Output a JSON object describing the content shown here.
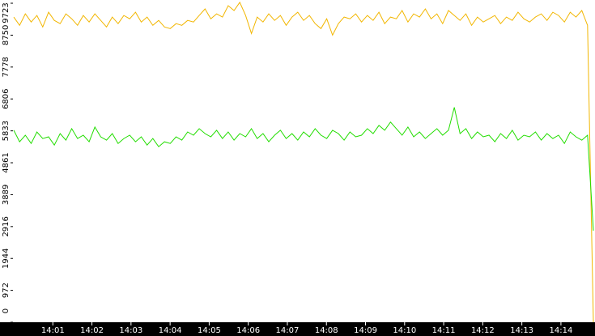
{
  "chart_data": {
    "type": "line",
    "xlim": [
      0,
      14.83
    ],
    "xticks": [
      {
        "value": 1,
        "label": "14:01"
      },
      {
        "value": 2,
        "label": "14:02"
      },
      {
        "value": 3,
        "label": "14:03"
      },
      {
        "value": 4,
        "label": "14:04"
      },
      {
        "value": 5,
        "label": "14:05"
      },
      {
        "value": 6,
        "label": "14:06"
      },
      {
        "value": 7,
        "label": "14:07"
      },
      {
        "value": 8,
        "label": "14:08"
      },
      {
        "value": 9,
        "label": "14:09"
      },
      {
        "value": 10,
        "label": "14:10"
      },
      {
        "value": 11,
        "label": "14:11"
      },
      {
        "value": 12,
        "label": "14:12"
      },
      {
        "value": 13,
        "label": "14:13"
      },
      {
        "value": 14,
        "label": "14:14"
      }
    ],
    "ylim": [
      0,
      9723
    ],
    "yticks": [
      0,
      972,
      1944,
      2916,
      3889,
      4861,
      5833,
      6806,
      7778,
      8750,
      9723
    ],
    "series": [
      {
        "color": "#f2b600",
        "values": [
          9300,
          9050,
          9400,
          9150,
          9350,
          9000,
          9450,
          9200,
          9100,
          9400,
          9250,
          9050,
          9350,
          9150,
          9400,
          9200,
          9000,
          9300,
          9100,
          9350,
          9250,
          9450,
          9150,
          9300,
          9050,
          9200,
          9000,
          8950,
          9100,
          9050,
          9200,
          9150,
          9350,
          9550,
          9250,
          9400,
          9300,
          9650,
          9500,
          9750,
          9350,
          8800,
          9300,
          9150,
          9400,
          9200,
          9350,
          9050,
          9300,
          9450,
          9200,
          9350,
          9100,
          8950,
          9250,
          8750,
          9100,
          9300,
          9250,
          9400,
          9150,
          9350,
          9200,
          9450,
          9100,
          9300,
          9250,
          9500,
          9150,
          9400,
          9300,
          9550,
          9250,
          9400,
          9100,
          9500,
          9350,
          9200,
          9400,
          9050,
          9300,
          9150,
          9250,
          9350,
          9100,
          9300,
          9200,
          9450,
          9250,
          9150,
          9300,
          9400,
          9200,
          9450,
          9350,
          9150,
          9450,
          9300,
          9500,
          9050,
          0
        ]
      },
      {
        "color": "#22dd00",
        "values": [
          5850,
          5500,
          5700,
          5450,
          5800,
          5600,
          5650,
          5400,
          5750,
          5550,
          5900,
          5600,
          5700,
          5500,
          5950,
          5650,
          5550,
          5750,
          5450,
          5600,
          5700,
          5500,
          5650,
          5400,
          5600,
          5350,
          5500,
          5450,
          5650,
          5550,
          5800,
          5700,
          5900,
          5750,
          5650,
          5850,
          5600,
          5800,
          5550,
          5750,
          5650,
          5900,
          5600,
          5750,
          5500,
          5700,
          5850,
          5600,
          5750,
          5550,
          5800,
          5650,
          5900,
          5700,
          5600,
          5850,
          5750,
          5550,
          5800,
          5650,
          5700,
          5900,
          5750,
          6000,
          5850,
          6100,
          5900,
          5700,
          5950,
          5650,
          5800,
          5600,
          5750,
          5900,
          5700,
          5850,
          6550,
          5750,
          5900,
          5600,
          5800,
          5650,
          5700,
          5500,
          5750,
          5600,
          5850,
          5550,
          5700,
          5650,
          5800,
          5550,
          5750,
          5600,
          5700,
          5450,
          5800,
          5650,
          5550,
          5700,
          2790
        ]
      }
    ]
  }
}
